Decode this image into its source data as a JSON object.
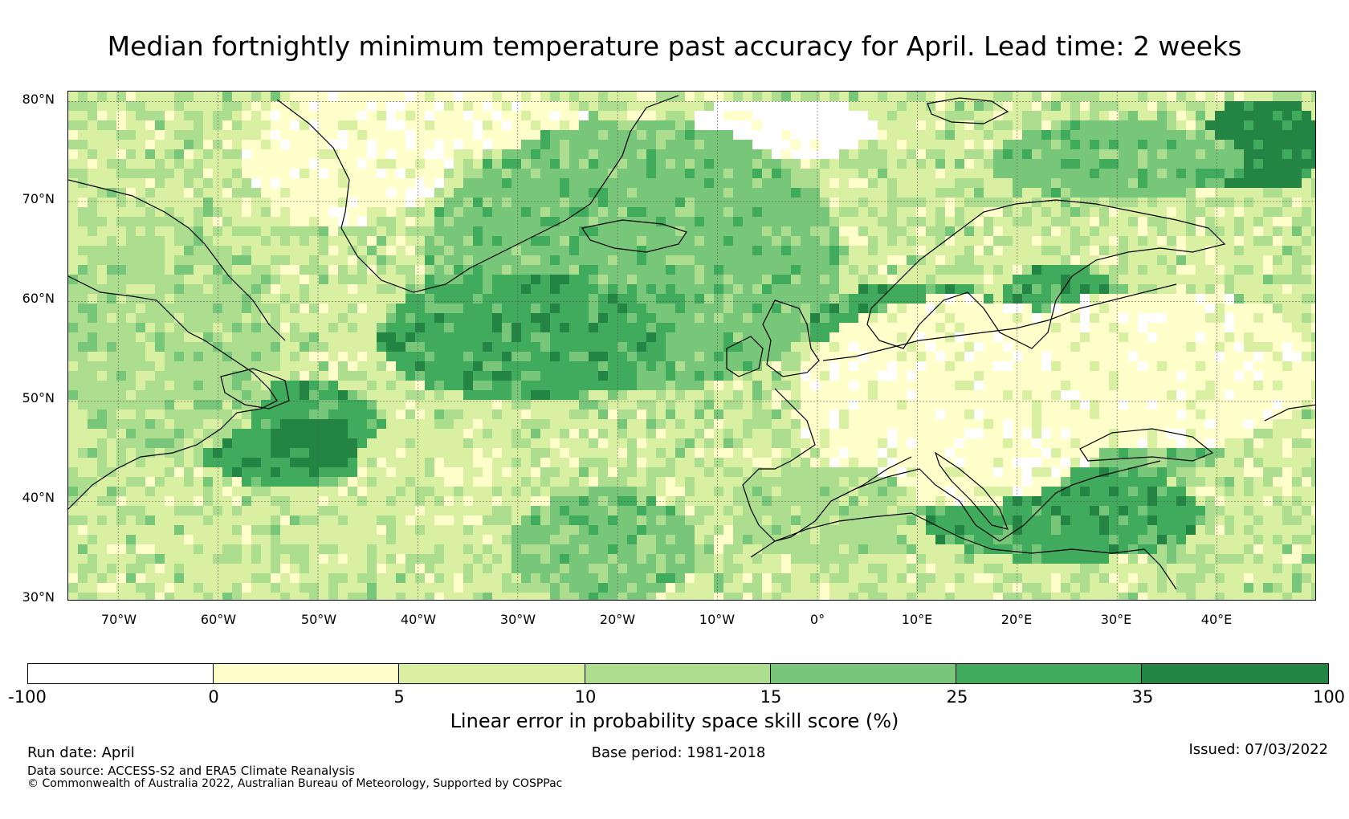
{
  "title": "Median fortnightly minimum temperature past accuracy for April. Lead time: 2 weeks",
  "map": {
    "lat_range": [
      30,
      81
    ],
    "lon_range": [
      -75,
      50
    ],
    "lat_ticks": [
      "80°N",
      "70°N",
      "60°N",
      "50°N",
      "40°N",
      "30°N"
    ],
    "lon_ticks": [
      "70°W",
      "60°W",
      "50°W",
      "40°W",
      "30°W",
      "20°W",
      "10°W",
      "0°",
      "10°E",
      "20°E",
      "30°E",
      "40°E"
    ],
    "coastline_color": "#000000",
    "gridline_color": "#555555"
  },
  "colorbar": {
    "label": "Linear error in probability space skill score (%)",
    "tick_labels": [
      "-100",
      "0",
      "5",
      "10",
      "15",
      "25",
      "35",
      "100"
    ],
    "colors": [
      "#ffffff",
      "#ffffcc",
      "#d9f0a3",
      "#addd8e",
      "#78c679",
      "#41ab5d",
      "#238443"
    ]
  },
  "footer": {
    "run_date": "Run date: April",
    "base_period": "Base period: 1981-2018",
    "issued": "Issued: 07/03/2022",
    "data_source": "Data source: ACCESS-S2 and ERA5 Climate Reanalysis",
    "copyright": "© Commonwealth of Australia 2022, Australian Bureau of Meteorology, Supported by COSPPac"
  }
}
